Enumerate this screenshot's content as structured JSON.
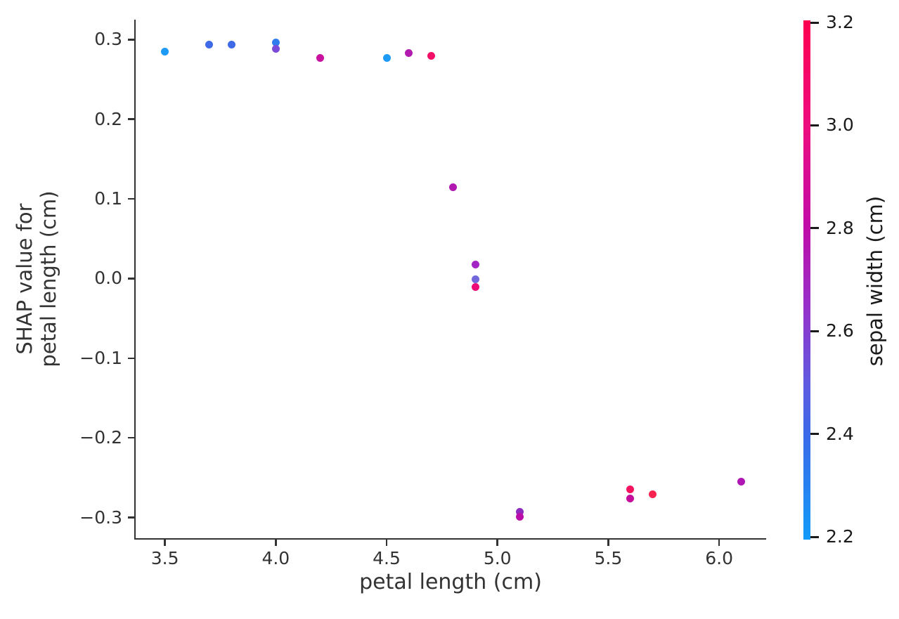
{
  "figure": {
    "background": "#ffffff",
    "text_color": "#333333"
  },
  "chart_data": {
    "type": "scatter",
    "title": "",
    "xlabel": "petal length (cm)",
    "ylabel_lines": [
      "SHAP value for",
      "petal length (cm)"
    ],
    "xlim": [
      3.368,
      6.212
    ],
    "ylim": [
      -0.326,
      0.325
    ],
    "grid": false,
    "legend": "none (colorbar encodes third variable)",
    "xticks": [
      {
        "value": 3.5,
        "label": "3.5"
      },
      {
        "value": 4.0,
        "label": "4.0"
      },
      {
        "value": 4.5,
        "label": "4.5"
      },
      {
        "value": 5.0,
        "label": "5.0"
      },
      {
        "value": 5.5,
        "label": "5.5"
      },
      {
        "value": 6.0,
        "label": "6.0"
      }
    ],
    "yticks": [
      {
        "value": 0.3,
        "label": "0.3"
      },
      {
        "value": 0.2,
        "label": "0.2"
      },
      {
        "value": 0.1,
        "label": "0.1"
      },
      {
        "value": 0.0,
        "label": "0.0"
      },
      {
        "value": -0.1,
        "label": "−0.1"
      },
      {
        "value": -0.2,
        "label": "−0.2"
      },
      {
        "value": -0.3,
        "label": "−0.3"
      }
    ],
    "colorbar": {
      "label": "sepal width (cm)",
      "vmin": 2.2,
      "vmax": 3.2,
      "ticks": [
        {
          "value": 3.2,
          "label": "3.2"
        },
        {
          "value": 3.0,
          "label": "3.0"
        },
        {
          "value": 2.8,
          "label": "2.8"
        },
        {
          "value": 2.6,
          "label": "2.6"
        },
        {
          "value": 2.4,
          "label": "2.4"
        },
        {
          "value": 2.2,
          "label": "2.2"
        }
      ],
      "gradient_stops": [
        {
          "pos": 0.0,
          "color": "#129BF8"
        },
        {
          "pos": 0.2,
          "color": "#3A6AE9"
        },
        {
          "pos": 0.3,
          "color": "#5F5BE0"
        },
        {
          "pos": 0.44,
          "color": "#9333CC"
        },
        {
          "pos": 0.6,
          "color": "#C00CA8"
        },
        {
          "pos": 0.8,
          "color": "#EE0D7E"
        },
        {
          "pos": 1.0,
          "color": "#FB0050"
        }
      ]
    },
    "points": [
      {
        "x": 3.5,
        "y": 0.285,
        "sepal_width": 2.2,
        "color": "#1E9AF7"
      },
      {
        "x": 3.7,
        "y": 0.294,
        "sepal_width": 2.4,
        "color": "#3E6AE8"
      },
      {
        "x": 3.8,
        "y": 0.294,
        "sepal_width": 2.4,
        "color": "#3E6AE8"
      },
      {
        "x": 4.0,
        "y": 0.296,
        "sepal_width": 2.3,
        "color": "#2F7CEF"
      },
      {
        "x": 4.0,
        "y": 0.288,
        "sepal_width": 2.6,
        "color": "#7A4BD9"
      },
      {
        "x": 4.2,
        "y": 0.277,
        "sepal_width": 2.9,
        "color": "#C911A0"
      },
      {
        "x": 4.5,
        "y": 0.277,
        "sepal_width": 2.2,
        "color": "#1E9AF7"
      },
      {
        "x": 4.6,
        "y": 0.283,
        "sepal_width": 2.8,
        "color": "#B21BB0"
      },
      {
        "x": 4.7,
        "y": 0.28,
        "sepal_width": 3.1,
        "color": "#F50F66"
      },
      {
        "x": 4.8,
        "y": 0.115,
        "sepal_width": 2.8,
        "color": "#B118B0"
      },
      {
        "x": 4.9,
        "y": 0.018,
        "sepal_width": 2.7,
        "color": "#A324C4"
      },
      {
        "x": 4.9,
        "y": -0.001,
        "sepal_width": 2.5,
        "color": "#7168DC"
      },
      {
        "x": 4.9,
        "y": -0.011,
        "sepal_width": 3.0,
        "color": "#EF0B77"
      },
      {
        "x": 5.1,
        "y": -0.293,
        "sepal_width": 2.7,
        "color": "#8F2BBF"
      },
      {
        "x": 5.1,
        "y": -0.299,
        "sepal_width": 2.9,
        "color": "#BB0EA8"
      },
      {
        "x": 5.6,
        "y": -0.265,
        "sepal_width": 3.1,
        "color": "#F7135D"
      },
      {
        "x": 5.6,
        "y": -0.276,
        "sepal_width": 2.9,
        "color": "#C50C9B"
      },
      {
        "x": 5.7,
        "y": -0.271,
        "sepal_width": 3.2,
        "color": "#FB2350"
      },
      {
        "x": 6.1,
        "y": -0.255,
        "sepal_width": 2.8,
        "color": "#AE17B4"
      }
    ]
  }
}
